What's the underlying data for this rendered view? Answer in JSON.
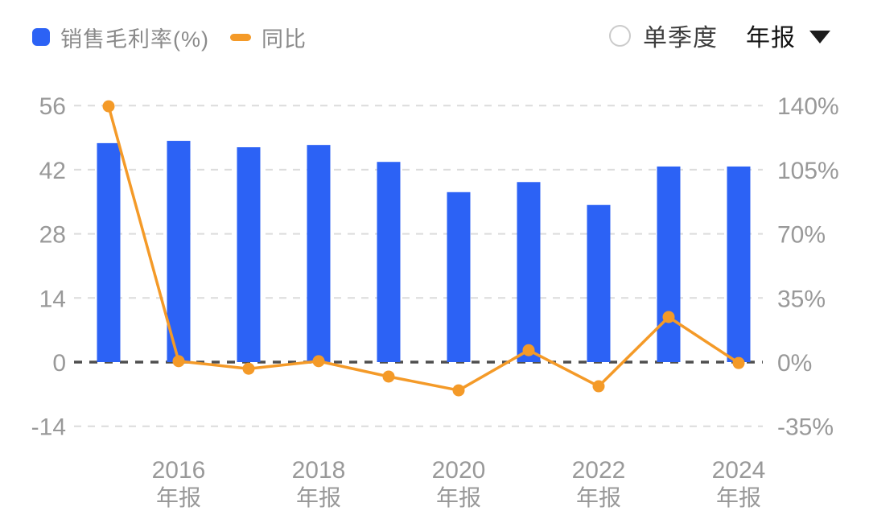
{
  "controls": {
    "radio_label": "单季度",
    "dropdown_value": "年报"
  },
  "colors": {
    "bar": "#2c62f5",
    "line": "#f49a28",
    "grid": "#dcdcdc",
    "zero_line": "#4f4f4f",
    "axis_text": "#999999"
  },
  "chart_data": {
    "type": "bar+line",
    "title": "",
    "categories": [
      "2015",
      "2016",
      "2017",
      "2018",
      "2019",
      "2020",
      "2021",
      "2022",
      "2023",
      "2024"
    ],
    "category_period": "年报",
    "series": [
      {
        "name": "销售毛利率(%)",
        "type": "bar",
        "axis": "left",
        "values": [
          47.8,
          48.3,
          46.9,
          47.4,
          43.7,
          37.1,
          39.3,
          34.3,
          42.7,
          42.7
        ]
      },
      {
        "name": "同比",
        "type": "line",
        "axis": "right",
        "unit": "%",
        "values": [
          139.6,
          0.5,
          -3.6,
          0.5,
          -7.9,
          -15.4,
          6.5,
          -13.2,
          24.6,
          -0.5
        ]
      }
    ],
    "left_axis": {
      "ticks": [
        56,
        42,
        28,
        14,
        0,
        -14
      ],
      "min": -14,
      "max": 56
    },
    "right_axis": {
      "ticks": [
        "140%",
        "105%",
        "70%",
        "35%",
        "0%",
        "-35%"
      ],
      "min": -35,
      "max": 140
    },
    "x_ticks": [
      {
        "index": 1,
        "line1": "2016",
        "line2": "年报"
      },
      {
        "index": 3,
        "line1": "2018",
        "line2": "年报"
      },
      {
        "index": 5,
        "line1": "2020",
        "line2": "年报"
      },
      {
        "index": 7,
        "line1": "2022",
        "line2": "年报"
      },
      {
        "index": 9,
        "line1": "2024",
        "line2": "年报"
      }
    ],
    "grid": "dashed",
    "legend_position": "top-left"
  }
}
